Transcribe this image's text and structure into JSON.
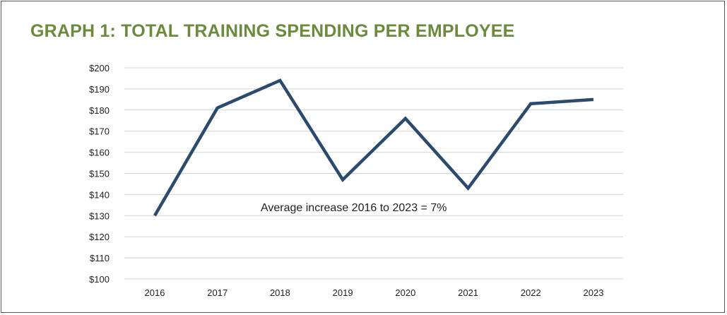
{
  "chart_data": {
    "type": "line",
    "title": "GRAPH 1: TOTAL TRAINING SPENDING PER EMPLOYEE",
    "xlabel": "",
    "ylabel": "",
    "categories": [
      "2016",
      "2017",
      "2018",
      "2019",
      "2020",
      "2021",
      "2022",
      "2023"
    ],
    "series": [
      {
        "name": "Training spending per employee",
        "values": [
          130,
          181,
          194,
          147,
          176,
          143,
          183,
          185
        ]
      }
    ],
    "ylim": [
      100,
      200
    ],
    "yticks": [
      100,
      110,
      120,
      130,
      140,
      150,
      160,
      170,
      180,
      190,
      200
    ],
    "ytick_labels": [
      "$100",
      "$110",
      "$120",
      "$130",
      "$140",
      "$150",
      "$160",
      "$170",
      "$180",
      "$190",
      "$200"
    ],
    "grid": true,
    "annotation": "Average increase 2016 to 2023 = 7%",
    "colors": {
      "line": "#2c4a6e",
      "title": "#6b8a3c",
      "grid": "#d4d4d4"
    }
  }
}
